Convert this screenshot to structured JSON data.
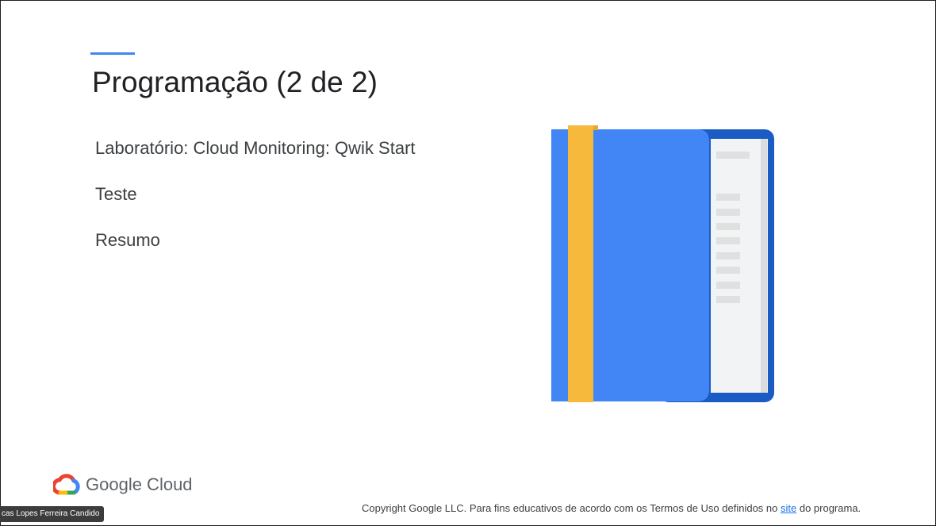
{
  "slide": {
    "title": "Programação (2 de 2)",
    "agenda": [
      "Laboratório: Cloud Monitoring: Qwik Start",
      "Teste",
      "Resumo"
    ],
    "illustration": "book-icon"
  },
  "footer": {
    "logo_text": "Google Cloud",
    "copyright_before": "Copyright Google LLC. Para fins educativos de acordo com os Termos de Uso definidos no ",
    "copyright_link": "site",
    "copyright_after": " do programa."
  },
  "participant": {
    "name": "cas Lopes Ferreira Candido"
  },
  "colors": {
    "accent": "#4285f4",
    "book_cover": "#4285f4",
    "book_spine": "#1a5bc4",
    "bookmark": "#f6b93b",
    "page_lines": "#e0e0e0"
  }
}
